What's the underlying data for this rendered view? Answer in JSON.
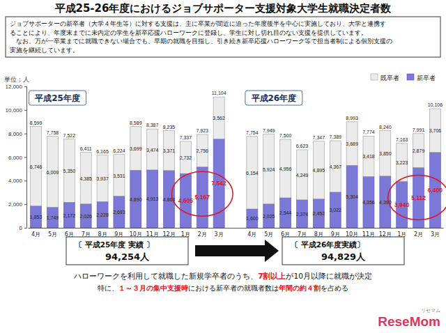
{
  "chart_data": {
    "type": "bar",
    "title": "平成25-26年度におけるジョブサポーター支援対象大学生就職決定者数",
    "description": [
      "ジョブサポーターの新卒者（大学４年生等）に対する支援は、主に卒業が間近に迫った年度後半を中心に実施しており、大学と連携す",
      "ることにより、年度末までに未内定の学生を新卒応援ハローワークに登録し、学生に対し切れ目のない支援を提供しています。",
      "　なお、万が一卒業までに就職できない場合でも、早期の就職を目指し、引き続き新卒応援ハローワーク等で担当者制による個別支援の",
      "実施を継続しています。"
    ],
    "unit_label": "単位：人",
    "categories": [
      "4月",
      "5月",
      "6月",
      "7月",
      "8月",
      "9月",
      "10月",
      "11月",
      "12月",
      "1月",
      "2月",
      "3月",
      null,
      "4月",
      "5月",
      "6月",
      "7月",
      "8月",
      "9月",
      "10月",
      "11月",
      "12月",
      "1月",
      "2月",
      "3月"
    ],
    "series": [
      {
        "name": "新卒者",
        "color": "#7b78d8",
        "values": [
          1853,
          1749,
          2172,
          2026,
          2228,
          2693,
          4890,
          4913,
          4864,
          4605,
          5167,
          7542,
          null,
          1600,
          2025,
          2544,
          2374,
          2452,
          3022,
          5304,
          4356,
          4390,
          3940,
          5112,
          6400
        ],
        "value_labels": [
          "1,853",
          "1,749",
          "2,172",
          "2,026",
          "2,228",
          "2,693",
          "4,890",
          "4,913",
          "4,864",
          "4,605",
          "5,167",
          "7,542",
          null,
          "1,600",
          "2,025",
          "2,544",
          "2,374",
          "2,452",
          "3,022",
          "5,304",
          "4,356",
          "4,390",
          "3,940",
          "5,112",
          "6,400"
        ]
      },
      {
        "name": "既卒者",
        "color": "#ebebeb",
        "values": [
          6746,
          6009,
          5350,
          4385,
          3937,
          3531,
          3699,
          3474,
          3371,
          2732,
          2756,
          3562,
          null,
          6154,
          5924,
          4956,
          4249,
          4895,
          4367,
          3689,
          3418,
          3850,
          3223,
          2879,
          3706
        ],
        "value_labels": [
          "6,746",
          "6,009",
          "5,350",
          "4,385",
          "3,937",
          "3,531",
          "3,699",
          "3,474",
          "3,371",
          "2,732",
          "2,756",
          "3,562",
          null,
          "6,154",
          "5,924",
          "4,956",
          "4,249",
          "4,895",
          "4,367",
          "3,689",
          "3,418",
          "3,850",
          "3,223",
          "2,879",
          "3,706"
        ]
      }
    ],
    "totals": [
      8599,
      7758,
      7522,
      6411,
      6165,
      6224,
      8589,
      8387,
      8235,
      7337,
      7923,
      11104,
      null,
      7754,
      7949,
      7500,
      6623,
      7347,
      7389,
      8993,
      7774,
      8240,
      7163,
      7991,
      10106
    ],
    "total_labels": [
      "8,599",
      "7,758",
      "7,522",
      "6,411",
      "6,165",
      "6,224",
      "8,589",
      "8,387",
      "8,235",
      "7,337",
      "7,923",
      "11,104",
      null,
      "7,754",
      "7,949",
      "7,500",
      "6,623",
      "7,347",
      "7,389",
      "8,993",
      "7,774",
      "8,240",
      "7,163",
      "7,991",
      "10,106"
    ],
    "stacked": true,
    "data_labels": true,
    "legend": "upper right",
    "ylim": [
      0,
      12000
    ],
    "yticks": [
      0,
      {
        "value": 2000,
        "label": "2,000"
      },
      {
        "value": 4000,
        "label": "4,000"
      },
      {
        "value": 6000,
        "label": "6,000"
      },
      {
        "value": 8000,
        "label": "8,000"
      },
      {
        "value": 10000,
        "label": "10,000"
      },
      {
        "value": 12000,
        "label": "12,000"
      }
    ],
    "annotations": {
      "panels": [
        "平成25年度",
        "平成26年度"
      ],
      "results": [
        {
          "title": "〔 平成25年度 実績 〕",
          "value": "94,254人"
        },
        {
          "title": "〔 平成26年度実績〕",
          "value": "94,829人"
        }
      ],
      "footer": [
        [
          "ハローワークを利用して就職した新規学卒者のうち、",
          "7割以上",
          "が10月以降に就職が決定"
        ],
        [
          "特に、",
          "１～３月の集中支援時",
          "における新卒者の就職者数は",
          "年間の約４割",
          "を占める"
        ]
      ],
      "source": [
        "ReseMom",
        "リセマム"
      ]
    }
  }
}
